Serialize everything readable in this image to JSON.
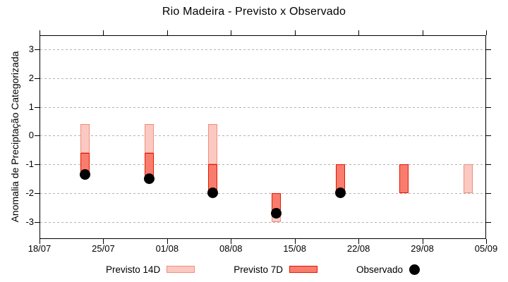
{
  "title": "Rio Madeira - Previsto x Observado",
  "ylabel": "Anomalia de Preciptação Categorizada",
  "colors": {
    "p14": {
      "fill": "#fbc9c1",
      "border": "#ef8d7c"
    },
    "p7": {
      "fill": "#f97d6d",
      "border": "#e61400"
    },
    "obs": {
      "fill": "#000000"
    },
    "grid": "#b3b3b3",
    "axis": "#000000"
  },
  "legend": [
    {
      "label": "Previsto 14D",
      "series": "p14",
      "marker": "swatch"
    },
    {
      "label": "Previsto 7D",
      "series": "p7",
      "marker": "swatch"
    },
    {
      "label": "Observado",
      "series": "obs",
      "marker": "dot"
    }
  ],
  "chart_data": {
    "type": "bar",
    "title": "Rio Madeira - Previsto x Observado",
    "xlabel": "",
    "ylabel": "Anomalia de Preciptação Categorizada",
    "ylim": [
      -3.6,
      3.5
    ],
    "yticks": [
      3,
      2,
      1,
      0,
      -1,
      -2,
      -3
    ],
    "grid": "horizontal-dashed",
    "legend_position": "bottom-center",
    "x_axis": {
      "tick_labels": [
        "18/07",
        "25/07",
        "01/08",
        "08/08",
        "15/08",
        "22/08",
        "29/08",
        "05/09"
      ],
      "tick_days": [
        0,
        7,
        14,
        21,
        28,
        35,
        42,
        49
      ],
      "total_days": 49
    },
    "series_names": {
      "p14": "Previsto 14D",
      "p7": "Previsto 7D",
      "obs": "Observado"
    },
    "bars": [
      {
        "date": "23/07",
        "day": 5,
        "segments": [
          {
            "series": "p14",
            "from": 0.4,
            "to": -0.6
          },
          {
            "series": "p7",
            "from": -0.6,
            "to": -1.3
          }
        ],
        "observed": -1.35
      },
      {
        "date": "30/07",
        "day": 12,
        "segments": [
          {
            "series": "p14",
            "from": 0.4,
            "to": -0.6
          },
          {
            "series": "p7",
            "from": -0.6,
            "to": -1.4
          }
        ],
        "observed": -1.5
      },
      {
        "date": "06/08",
        "day": 19,
        "segments": [
          {
            "series": "p14",
            "from": 0.4,
            "to": -1.0
          },
          {
            "series": "p7",
            "from": -1.0,
            "to": -1.9
          }
        ],
        "observed": -2.0
      },
      {
        "date": "13/08",
        "day": 26,
        "segments": [
          {
            "series": "p7",
            "from": -2.0,
            "to": -2.6
          },
          {
            "series": "p14",
            "from": -2.6,
            "to": -3.0
          }
        ],
        "observed": -2.7
      },
      {
        "date": "20/08",
        "day": 33,
        "segments": [
          {
            "series": "p7",
            "from": -1.0,
            "to": -2.0
          }
        ],
        "observed": -2.0
      },
      {
        "date": "27/08",
        "day": 40,
        "segments": [
          {
            "series": "p7",
            "from": -1.0,
            "to": -2.0
          }
        ],
        "observed": null
      },
      {
        "date": "03/09",
        "day": 47,
        "segments": [
          {
            "series": "p14",
            "from": -1.0,
            "to": -2.0
          }
        ],
        "observed": null
      }
    ]
  }
}
